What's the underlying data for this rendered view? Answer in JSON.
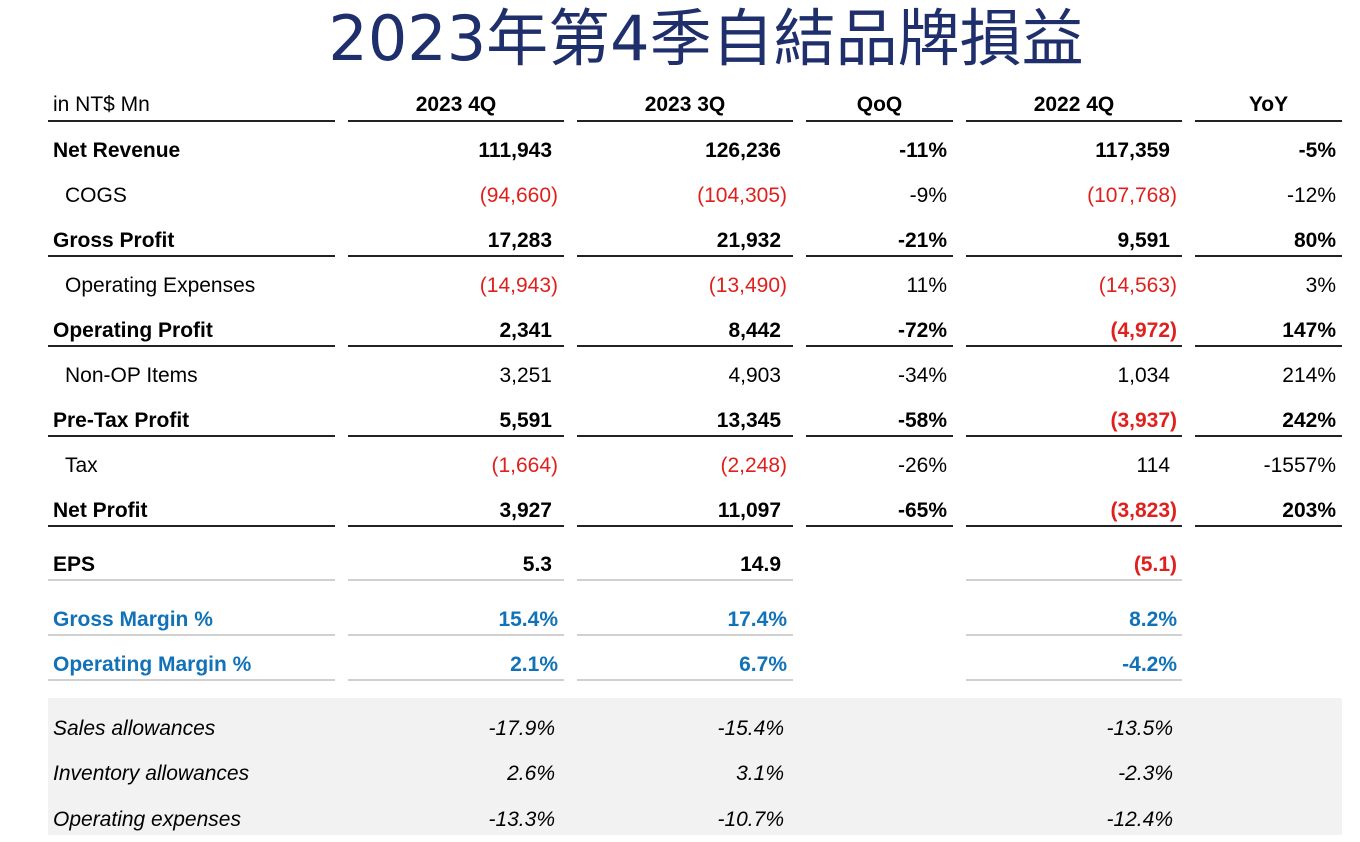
{
  "title": "2023年第4季自結品牌損益",
  "header": {
    "unit": "in NT$ Mn",
    "col1": "2023 4Q",
    "col2": "2023 3Q",
    "col3": "QoQ",
    "col4": "2022 4Q",
    "col5": "YoY"
  },
  "rows": [
    {
      "label": "Net Revenue",
      "v1": "111,943",
      "v2": "126,236",
      "v3": "-11%",
      "v4": "117,359",
      "v5": "-5%"
    },
    {
      "label": "COGS",
      "v1": "(94,660)",
      "v2": "(104,305)",
      "v3": "-9%",
      "v4": "(107,768)",
      "v5": "-12%"
    },
    {
      "label": "Gross Profit",
      "v1": "17,283",
      "v2": "21,932",
      "v3": "-21%",
      "v4": "9,591",
      "v5": "80%"
    },
    {
      "label": "Operating Expenses",
      "v1": "(14,943)",
      "v2": "(13,490)",
      "v3": "11%",
      "v4": "(14,563)",
      "v5": "3%"
    },
    {
      "label": "Operating Profit",
      "v1": "2,341",
      "v2": "8,442",
      "v3": "-72%",
      "v4": "(4,972)",
      "v5": "147%"
    },
    {
      "label": "Non-OP Items",
      "v1": "3,251",
      "v2": "4,903",
      "v3": "-34%",
      "v4": "1,034",
      "v5": "214%"
    },
    {
      "label": "Pre-Tax Profit",
      "v1": "5,591",
      "v2": "13,345",
      "v3": "-58%",
      "v4": "(3,937)",
      "v5": "242%"
    },
    {
      "label": "Tax",
      "v1": "(1,664)",
      "v2": "(2,248)",
      "v3": "-26%",
      "v4": "114",
      "v5": "-1557%"
    },
    {
      "label": "Net Profit",
      "v1": "3,927",
      "v2": "11,097",
      "v3": "-65%",
      "v4": "(3,823)",
      "v5": "203%"
    }
  ],
  "eps": {
    "label": "EPS",
    "v1": "5.3",
    "v2": "14.9",
    "v4": "(5.1)"
  },
  "margins": [
    {
      "label": "Gross Margin %",
      "v1": "15.4%",
      "v2": "17.4%",
      "v4": "8.2%"
    },
    {
      "label": "Operating Margin %",
      "v1": "2.1%",
      "v2": "6.7%",
      "v4": "-4.2%"
    }
  ],
  "ratios": [
    {
      "label": "Sales allowances",
      "v1": "-17.9%",
      "v2": "-15.4%",
      "v4": "-13.5%"
    },
    {
      "label": "Inventory allowances",
      "v1": "2.6%",
      "v2": "3.1%",
      "v4": "-2.3%"
    },
    {
      "label": "Operating expenses",
      "v1": "-13.3%",
      "v2": "-10.7%",
      "v4": "-12.4%"
    }
  ],
  "colors": {
    "title": "#1f2f6b",
    "negative": "#e0201d",
    "margin_blue": "#1172b8",
    "band": "#f2f2f2"
  }
}
